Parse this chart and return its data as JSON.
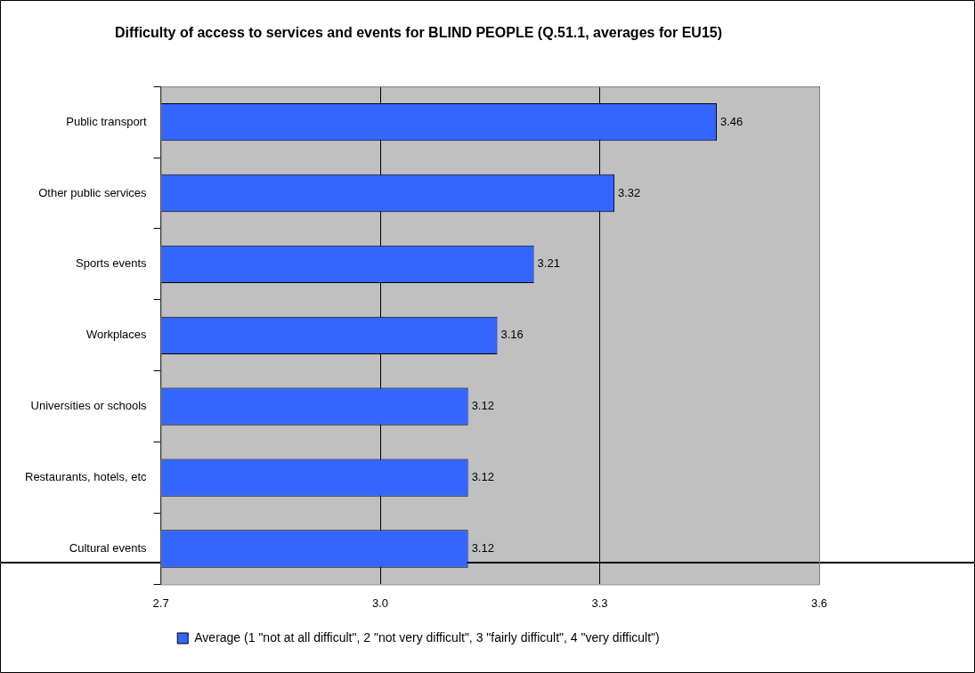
{
  "chart_data": {
    "type": "bar",
    "orientation": "horizontal",
    "title": "Difficulty of access to services and events for BLIND PEOPLE (Q.51.1, averages for EU15)",
    "categories": [
      "Public transport",
      "Other public services",
      "Sports events",
      "Workplaces",
      "Universities or schools",
      "Restaurants, hotels, etc",
      "Cultural events"
    ],
    "series": [
      {
        "name": "Average (1 \"not at all difficult\", 2 \"not very difficult\", 3 \"fairly difficult\", 4 \"very difficult\")",
        "color": "#3366ff",
        "values": [
          3.46,
          3.32,
          3.21,
          3.16,
          3.12,
          3.12,
          3.12
        ]
      }
    ],
    "xlim": [
      2.7,
      3.6
    ],
    "xticks": [
      2.7,
      {
        "value": 3,
        "label": "3.0"
      },
      3.3,
      3.6
    ],
    "grid": "x",
    "legend": "bottom",
    "data_labels": true
  }
}
